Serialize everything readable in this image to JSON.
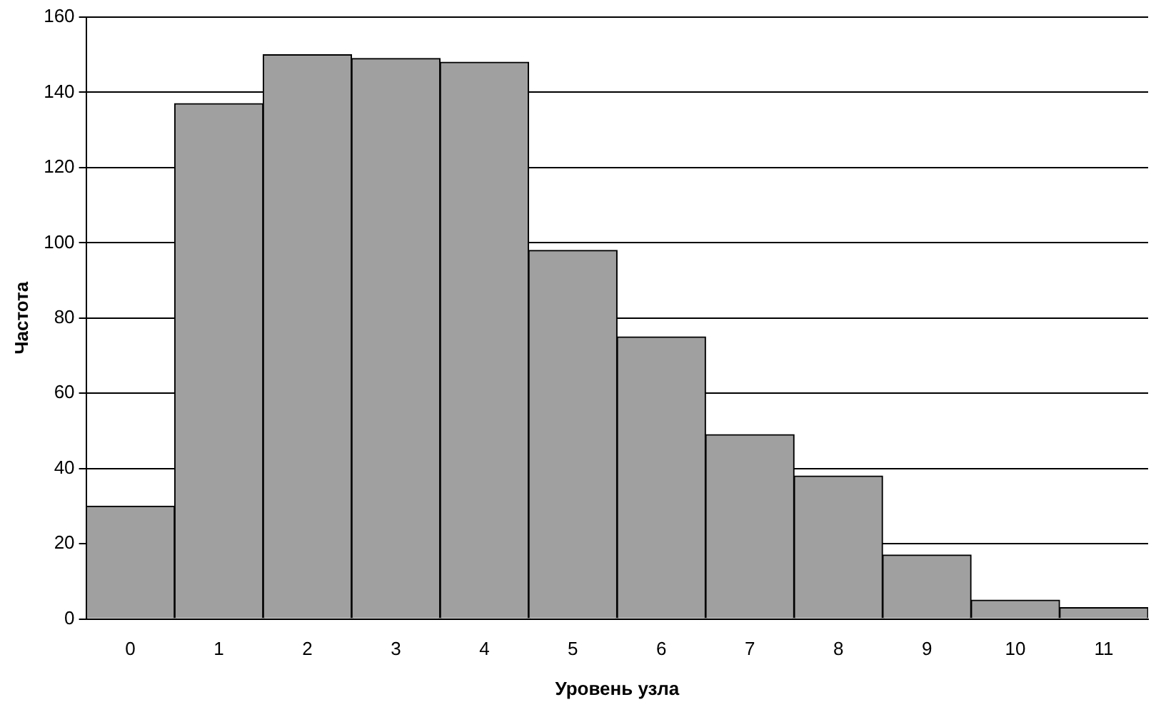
{
  "chart_data": {
    "type": "bar",
    "xlabel": "Уровень узла",
    "ylabel": "Частота",
    "categories": [
      "0",
      "1",
      "2",
      "3",
      "4",
      "5",
      "6",
      "7",
      "8",
      "9",
      "10",
      "11"
    ],
    "values": [
      30,
      137,
      150,
      149,
      148,
      98,
      75,
      49,
      38,
      17,
      5,
      3
    ],
    "color": "#a0a0a0",
    "ylim": [
      0,
      160
    ],
    "yticks": [
      0,
      20,
      40,
      60,
      80,
      100,
      120,
      140,
      160
    ],
    "grid": "y",
    "legend": false
  }
}
